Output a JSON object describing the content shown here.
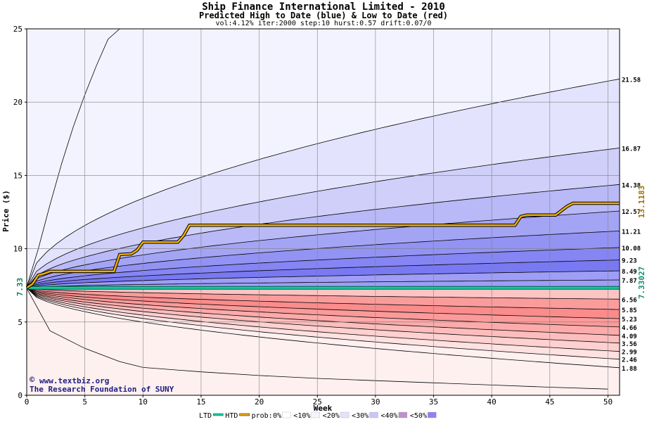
{
  "chart_data": {
    "type": "area",
    "title": "Ship Finance International Limited - 2010",
    "subtitle": "Predicted High to Date (blue) &  Low to Date (red)",
    "params": "vol:4.12% iter:2000 step:10 hurst:0.57 drift:0.07/0",
    "xlabel": "Week",
    "ylabel": "Price ($)",
    "xlim": [
      0,
      51
    ],
    "ylim": [
      0,
      25
    ],
    "x_ticks": [
      0,
      5,
      10,
      15,
      20,
      25,
      30,
      35,
      40,
      45,
      50
    ],
    "y_ticks": [
      0,
      5,
      10,
      15,
      20,
      25
    ],
    "start_price": 7.33,
    "start_label": "7.33",
    "high_end_labels": [
      "21.58",
      "16.87",
      "14.38",
      "12.57",
      "11.21",
      "10.08",
      "9.23",
      "8.49",
      "7.87"
    ],
    "low_end_labels": [
      "6.56",
      "5.85",
      "5.23",
      "4.66",
      "4.09",
      "3.56",
      "2.99",
      "2.46",
      "1.88"
    ],
    "high_curves_end": [
      21.58,
      16.87,
      14.38,
      12.57,
      11.21,
      10.08,
      9.23,
      8.49,
      7.87
    ],
    "low_curves_end": [
      6.56,
      5.85,
      5.23,
      4.66,
      4.09,
      3.56,
      2.99,
      2.46,
      1.88
    ],
    "outer_high_curve": {
      "x": [
        0,
        1,
        2,
        3,
        4,
        5,
        6,
        7,
        8
      ],
      "y": [
        7.4,
        10.0,
        13.0,
        15.8,
        18.3,
        20.5,
        22.5,
        24.3,
        25
      ]
    },
    "outer_low_curve": {
      "x": [
        0,
        2,
        5,
        8,
        10,
        15,
        20,
        25,
        30,
        35,
        40,
        45,
        50
      ],
      "y": [
        7.3,
        4.4,
        3.2,
        2.3,
        1.9,
        1.6,
        1.35,
        1.15,
        1.0,
        0.85,
        0.7,
        0.55,
        0.42
      ]
    },
    "htd_series": {
      "name": "HTD",
      "x": [
        0,
        0.5,
        1,
        1.5,
        2,
        7.5,
        8,
        9,
        9.5,
        10,
        13,
        13.5,
        14,
        42,
        42.5,
        43,
        45.5,
        46,
        46.5,
        47,
        51
      ],
      "y": [
        7.33,
        7.6,
        8.2,
        8.3,
        8.45,
        8.45,
        9.6,
        9.65,
        9.9,
        10.45,
        10.45,
        10.9,
        11.6,
        11.6,
        12.2,
        12.3,
        12.3,
        12.6,
        12.9,
        13.1,
        13.1
      ]
    },
    "ltd_series": {
      "name": "LTD",
      "x": [
        0,
        1,
        51
      ],
      "y": [
        7.33,
        7.33,
        7.33
      ]
    },
    "htd_final_label": "13.1183",
    "ltd_final_label": "7.33027",
    "probability_legend": {
      "prefix": "prob:",
      "items": [
        {
          "label": "0%",
          "color": "#ffffff"
        },
        {
          "label": "<10%",
          "color": "#f5f5ff"
        },
        {
          "label": "<20%",
          "color": "#e2e2fd"
        },
        {
          "label": "<30%",
          "color": "#c8c6f6"
        },
        {
          "label": "<40%",
          "color": "#c090cc"
        },
        {
          "label": "<50%",
          "color": "#8c82f4"
        }
      ]
    },
    "band_colors_high": [
      "#f3f3ff",
      "#e3e3fd",
      "#cfcff9",
      "#b9b9f7",
      "#a4a4f5",
      "#9393f4",
      "#8585f3",
      "#7979f2",
      "#9e9ef6"
    ],
    "band_colors_low": [
      "#fff0f0",
      "#ffe1e1",
      "#fed0d0",
      "#fdbdbd",
      "#fcaaaa",
      "#fb9a9a",
      "#fa8c8c",
      "#fb9c9c",
      "#fdc4c4"
    ],
    "grid": true,
    "legend_position": "bottom",
    "legend_labels": [
      "LTD",
      "HTD"
    ],
    "colors": {
      "htd": "#f0b000",
      "ltd": "#18c8a0",
      "axis_label_htd": "#a07000",
      "axis_label_ltd": "#109070"
    }
  },
  "credit": {
    "line1": "www.textbiz.org",
    "line2": "The Research Foundation of SUNY",
    "symbol": "©"
  }
}
